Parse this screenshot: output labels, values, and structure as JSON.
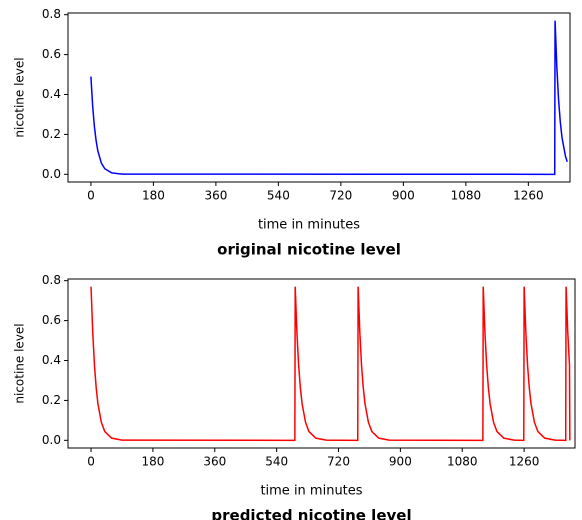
{
  "chart_data": [
    {
      "type": "line",
      "title": "original nicotine level",
      "xlabel": "time in minutes",
      "ylabel": "nicotine level",
      "x": [
        0,
        5,
        10,
        15,
        20,
        30,
        40,
        60,
        90,
        1336,
        1337,
        1342,
        1347,
        1352,
        1357,
        1367,
        1372
      ],
      "series": [
        {
          "color": "#0000ff",
          "values": [
            0.49,
            0.343,
            0.24,
            0.168,
            0.117,
            0.057,
            0.028,
            0.007,
            0.001,
            0,
            0.77,
            0.54,
            0.376,
            0.263,
            0.184,
            0.09,
            0.063
          ]
        }
      ],
      "xlim": [
        -66,
        1380
      ],
      "ylim": [
        -0.0385,
        0.8085
      ],
      "xticks": [
        0,
        180,
        360,
        540,
        720,
        900,
        1080,
        1260
      ],
      "yticks": [
        {
          "value": 0,
          "label": "0.0"
        },
        0.2,
        0.4,
        0.6,
        0.8
      ]
    },
    {
      "type": "line",
      "title": "predicted nicotine level",
      "xlabel": "time in minutes",
      "ylabel": "nicotine level",
      "x": [
        0,
        5,
        10,
        15,
        20,
        30,
        40,
        60,
        90,
        593,
        594,
        599,
        604,
        609,
        614,
        624,
        634,
        654,
        684,
        776,
        777,
        782,
        787,
        792,
        797,
        807,
        817,
        837,
        867,
        1140,
        1141,
        1146,
        1151,
        1156,
        1161,
        1171,
        1181,
        1201,
        1231,
        1259,
        1260,
        1265,
        1270,
        1275,
        1280,
        1290,
        1300,
        1320,
        1350,
        1381,
        1382,
        1387,
        1392,
        1393
      ],
      "series": [
        {
          "color": "#ff0000",
          "values": [
            0.77,
            0.54,
            0.376,
            0.263,
            0.184,
            0.09,
            0.044,
            0.011,
            0.001,
            0,
            0.77,
            0.54,
            0.376,
            0.263,
            0.184,
            0.09,
            0.044,
            0.011,
            0.001,
            0,
            0.77,
            0.54,
            0.376,
            0.263,
            0.184,
            0.09,
            0.044,
            0.011,
            0.001,
            0,
            0.77,
            0.54,
            0.376,
            0.263,
            0.184,
            0.09,
            0.044,
            0.011,
            0.001,
            0,
            0.77,
            0.54,
            0.376,
            0.263,
            0.184,
            0.09,
            0.044,
            0.011,
            0.001,
            0,
            0.77,
            0.54,
            0.376,
            0
          ]
        }
      ],
      "xlim": [
        -67,
        1408
      ],
      "ylim": [
        -0.0385,
        0.8085
      ],
      "xticks": [
        0,
        180,
        360,
        540,
        720,
        900,
        1080,
        1260
      ],
      "yticks": [
        {
          "value": 0,
          "label": "0.0"
        },
        0.2,
        0.4,
        0.6,
        0.8
      ]
    }
  ]
}
